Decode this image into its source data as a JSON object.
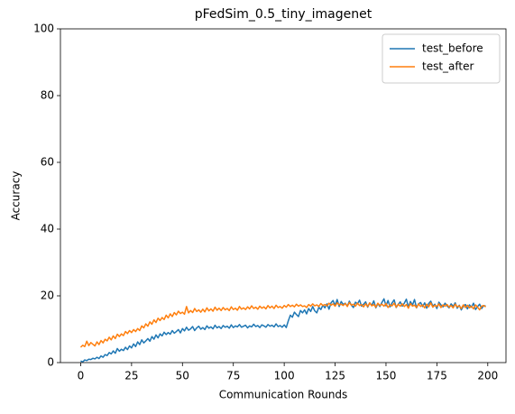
{
  "chart_data": {
    "type": "line",
    "title": "pFedSim_0.5_tiny_imagenet",
    "xlabel": "Communication Rounds",
    "ylabel": "Accuracy",
    "x": [
      0,
      1,
      2,
      3,
      4,
      5,
      6,
      7,
      8,
      9,
      10,
      11,
      12,
      13,
      14,
      15,
      16,
      17,
      18,
      19,
      20,
      21,
      22,
      23,
      24,
      25,
      26,
      27,
      28,
      29,
      30,
      31,
      32,
      33,
      34,
      35,
      36,
      37,
      38,
      39,
      40,
      41,
      42,
      43,
      44,
      45,
      46,
      47,
      48,
      49,
      50,
      51,
      52,
      53,
      54,
      55,
      56,
      57,
      58,
      59,
      60,
      61,
      62,
      63,
      64,
      65,
      66,
      67,
      68,
      69,
      70,
      71,
      72,
      73,
      74,
      75,
      76,
      77,
      78,
      79,
      80,
      81,
      82,
      83,
      84,
      85,
      86,
      87,
      88,
      89,
      90,
      91,
      92,
      93,
      94,
      95,
      96,
      97,
      98,
      99,
      100,
      101,
      102,
      103,
      104,
      105,
      106,
      107,
      108,
      109,
      110,
      111,
      112,
      113,
      114,
      115,
      116,
      117,
      118,
      119,
      120,
      121,
      122,
      123,
      124,
      125,
      126,
      127,
      128,
      129,
      130,
      131,
      132,
      133,
      134,
      135,
      136,
      137,
      138,
      139,
      140,
      141,
      142,
      143,
      144,
      145,
      146,
      147,
      148,
      149,
      150,
      151,
      152,
      153,
      154,
      155,
      156,
      157,
      158,
      159,
      160,
      161,
      162,
      163,
      164,
      165,
      166,
      167,
      168,
      169,
      170,
      171,
      172,
      173,
      174,
      175,
      176,
      177,
      178,
      179,
      180,
      181,
      182,
      183,
      184,
      185,
      186,
      187,
      188,
      189,
      190,
      191,
      192,
      193,
      194,
      195,
      196,
      197,
      198,
      199
    ],
    "series": [
      {
        "name": "test_before",
        "color": "#1f77b4",
        "values": [
          0.5,
          0.2,
          0.8,
          0.6,
          1.0,
          0.9,
          1.3,
          1.1,
          1.6,
          1.2,
          2.0,
          1.6,
          2.4,
          2.1,
          3.0,
          2.6,
          3.5,
          2.8,
          4.2,
          3.4,
          4.0,
          3.6,
          4.6,
          3.9,
          5.0,
          4.4,
          5.6,
          4.8,
          6.2,
          5.4,
          6.8,
          5.9,
          6.5,
          7.2,
          6.4,
          7.8,
          7.0,
          8.3,
          7.4,
          8.6,
          8.0,
          9.1,
          8.4,
          9.0,
          8.5,
          9.6,
          8.8,
          9.3,
          9.9,
          8.9,
          10.2,
          9.5,
          10.6,
          9.7,
          10.1,
          10.8,
          9.6,
          10.4,
          10.9,
          10.0,
          10.5,
          9.9,
          11.0,
          10.3,
          10.7,
          10.1,
          11.2,
          10.4,
          10.8,
          10.2,
          11.1,
          10.6,
          10.9,
          10.3,
          11.3,
          10.5,
          11.0,
          10.7,
          11.4,
          10.6,
          10.9,
          11.2,
          10.4,
          11.0,
          10.7,
          11.5,
          10.8,
          11.1,
          10.5,
          11.3,
          11.0,
          10.6,
          11.4,
          10.9,
          11.2,
          10.7,
          11.6,
          10.8,
          11.1,
          10.6,
          11.3,
          10.5,
          12.5,
          14.2,
          13.6,
          15.1,
          14.4,
          13.8,
          15.6,
          14.9,
          15.8,
          14.6,
          16.2,
          15.3,
          16.8,
          15.5,
          14.9,
          16.6,
          15.9,
          17.2,
          16.4,
          17.6,
          16.0,
          17.9,
          18.6,
          17.1,
          18.9,
          16.8,
          18.3,
          17.4,
          17.8,
          16.9,
          18.4,
          17.2,
          16.5,
          18.1,
          17.6,
          18.7,
          16.9,
          17.5,
          18.2,
          16.6,
          17.9,
          17.1,
          18.5,
          16.4,
          17.7,
          16.8,
          18.0,
          19.1,
          17.0,
          18.6,
          16.7,
          17.9,
          18.8,
          16.5,
          17.4,
          18.2,
          16.9,
          17.8,
          19.0,
          16.6,
          18.3,
          17.2,
          18.9,
          16.4,
          17.6,
          18.0,
          16.8,
          17.9,
          16.3,
          17.7,
          18.4,
          16.9,
          17.5,
          16.2,
          18.1,
          17.3,
          16.7,
          17.8,
          17.0,
          16.4,
          17.6,
          16.8,
          17.9,
          16.3,
          17.2,
          15.8,
          16.9,
          17.4,
          16.1,
          17.3,
          16.6,
          17.8,
          15.9,
          16.8,
          17.5,
          16.2,
          17.1,
          16.9
        ]
      },
      {
        "name": "test_after",
        "color": "#ff7f0e",
        "values": [
          4.6,
          5.2,
          4.8,
          6.4,
          5.1,
          6.0,
          5.5,
          5.0,
          6.2,
          5.4,
          6.6,
          5.9,
          7.0,
          6.5,
          7.6,
          6.8,
          8.0,
          7.2,
          8.5,
          7.8,
          8.6,
          8.1,
          9.3,
          8.7,
          9.6,
          9.0,
          9.9,
          9.3,
          10.2,
          9.6,
          11.0,
          10.4,
          11.6,
          10.9,
          12.2,
          11.5,
          12.8,
          12.0,
          13.3,
          12.6,
          13.5,
          12.9,
          14.2,
          13.4,
          14.6,
          13.8,
          15.0,
          14.3,
          15.4,
          14.7,
          15.1,
          14.5,
          16.8,
          14.9,
          15.6,
          15.0,
          16.2,
          15.3,
          15.8,
          15.1,
          16.0,
          15.2,
          16.4,
          15.5,
          16.1,
          15.4,
          16.6,
          15.7,
          16.3,
          15.6,
          16.5,
          15.8,
          16.2,
          15.6,
          16.7,
          15.9,
          16.3,
          15.7,
          16.8,
          16.0,
          16.4,
          15.9,
          16.7,
          16.1,
          17.0,
          16.2,
          16.6,
          16.0,
          16.9,
          16.3,
          16.7,
          16.1,
          17.1,
          16.4,
          16.9,
          16.2,
          17.2,
          16.5,
          16.8,
          16.3,
          17.1,
          16.6,
          17.4,
          16.8,
          17.2,
          16.7,
          17.5,
          16.9,
          17.3,
          16.8,
          17.0,
          16.5,
          17.4,
          16.9,
          17.6,
          17.0,
          17.3,
          16.8,
          17.7,
          17.1,
          17.4,
          17.0,
          17.8,
          17.2,
          17.6,
          16.9,
          17.9,
          17.3,
          17.5,
          17.1,
          17.7,
          16.8,
          18.0,
          17.2,
          17.5,
          16.9,
          17.8,
          17.1,
          17.4,
          16.7,
          17.6,
          16.8,
          17.9,
          17.0,
          17.4,
          16.6,
          17.8,
          17.1,
          17.5,
          16.9,
          17.7,
          16.5,
          17.3,
          17.0,
          17.8,
          16.6,
          17.5,
          16.9,
          17.6,
          16.8,
          17.4,
          16.3,
          17.7,
          16.9,
          17.2,
          16.5,
          17.6,
          16.8,
          17.3,
          16.4,
          17.5,
          16.7,
          17.9,
          16.6,
          17.2,
          16.8,
          17.6,
          16.5,
          17.3,
          16.9,
          17.4,
          16.6,
          17.1,
          16.4,
          17.5,
          16.7,
          17.0,
          16.2,
          17.3,
          16.5,
          17.2,
          16.4,
          16.9,
          16.1,
          17.3,
          16.6,
          15.8,
          16.9,
          17.1,
          16.7
        ]
      }
    ],
    "xlim": [
      -9.95,
      208.95
    ],
    "xticks": [
      0,
      25,
      50,
      75,
      100,
      125,
      150,
      175,
      200
    ],
    "ylim": [
      0,
      100
    ],
    "yticks": [
      0,
      20,
      40,
      60,
      80,
      100
    ],
    "legend": "upper right"
  }
}
